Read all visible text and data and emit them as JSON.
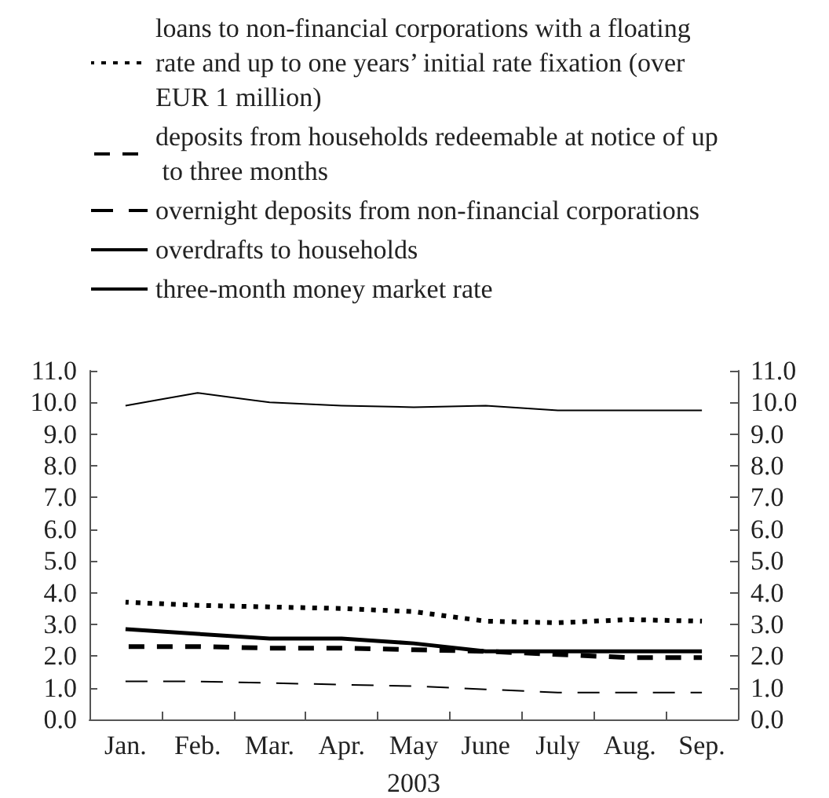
{
  "chart_data": {
    "type": "line",
    "xlabel": "2003",
    "categories": [
      "Jan.",
      "Feb.",
      "Mar.",
      "Apr.",
      "May",
      "June",
      "July",
      "Aug.",
      "Sep."
    ],
    "series": [
      {
        "name": "loans to non-financial corporations with a floating rate and up to one years’ initial rate fixation (over EUR 1 million)",
        "color": "#000000",
        "line_style": "dotted",
        "values": [
          3.7,
          3.6,
          3.55,
          3.5,
          3.4,
          3.1,
          3.05,
          3.15,
          3.1
        ]
      },
      {
        "name": "deposits from households redeemable at notice of up to three months",
        "color": "#000000",
        "line_style": "dashed",
        "values": [
          2.3,
          2.3,
          2.25,
          2.25,
          2.2,
          2.15,
          2.05,
          1.95,
          1.95
        ]
      },
      {
        "name": "overnight deposits from non-financial corporations",
        "color": "#000000",
        "line_style": "dashed",
        "values": [
          1.2,
          1.2,
          1.15,
          1.1,
          1.05,
          0.95,
          0.85,
          0.85,
          0.85
        ]
      },
      {
        "name": "overdrafts to households",
        "color": "#000000",
        "line_style": "solid",
        "values": [
          9.9,
          10.3,
          10.0,
          9.9,
          9.85,
          9.9,
          9.75,
          9.75,
          9.75
        ]
      },
      {
        "name": "three-month money market rate",
        "color": "#000000",
        "line_style": "solid",
        "values": [
          2.85,
          2.7,
          2.55,
          2.55,
          2.4,
          2.15,
          2.15,
          2.15,
          2.15
        ]
      }
    ],
    "ylim": [
      0,
      11
    ],
    "yticks": [
      {
        "value": 0,
        "label": "0.0"
      },
      {
        "value": 1,
        "label": "1.0"
      },
      {
        "value": 2,
        "label": "2.0"
      },
      {
        "value": 3,
        "label": "3.0"
      },
      {
        "value": 4,
        "label": "4.0"
      },
      {
        "value": 5,
        "label": "5.0"
      },
      {
        "value": 6,
        "label": "6.0"
      },
      {
        "value": 7,
        "label": "7.0"
      },
      {
        "value": 8,
        "label": "8.0"
      },
      {
        "value": 9,
        "label": "9.0"
      },
      {
        "value": 10,
        "label": "10.0"
      },
      {
        "value": 11,
        "label": "11.0"
      }
    ],
    "y2lim": [
      0,
      11
    ],
    "y2ticks": [
      {
        "value": 0,
        "label": "0.0"
      },
      {
        "value": 1,
        "label": "1.0"
      },
      {
        "value": 2,
        "label": "2.0"
      },
      {
        "value": 3,
        "label": "3.0"
      },
      {
        "value": 4,
        "label": "4.0"
      },
      {
        "value": 5,
        "label": "5.0"
      },
      {
        "value": 6,
        "label": "6.0"
      },
      {
        "value": 7,
        "label": "7.0"
      },
      {
        "value": 8,
        "label": "8.0"
      },
      {
        "value": 9,
        "label": "9.0"
      },
      {
        "value": 10,
        "label": "10.0"
      },
      {
        "value": 11,
        "label": "11.0"
      }
    ],
    "grid": false,
    "legend": "top",
    "marker": "none"
  }
}
